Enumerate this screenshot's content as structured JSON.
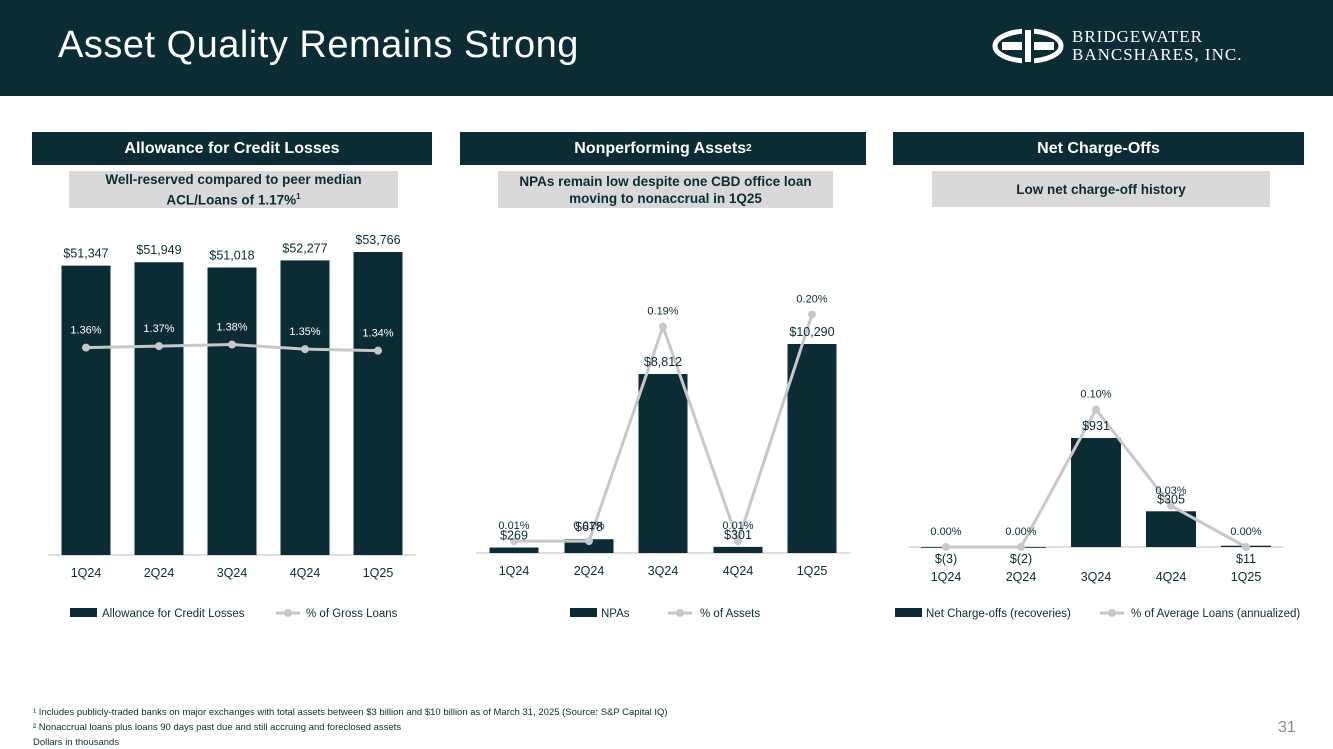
{
  "slide": {
    "title": "Asset Quality Remains Strong",
    "logo_line1": "Bridgewater",
    "logo_line2": "Bancshares, Inc.",
    "page_number": "31",
    "footnote_1": "¹ Includes publicly-traded banks on major exchanges with total assets between $3 billion and $10 billion as of March 31, 2025 (Source: S&P Capital IQ)",
    "footnote_2": "² Nonaccrual loans plus loans 90 days past due and still accruing and foreclosed assets",
    "footnote_3": "Dollars in thousands"
  },
  "colors": {
    "navy": "#0b2b35",
    "line": "#c8c8c8",
    "grey_box": "#d9d9d9"
  },
  "panels": [
    {
      "header": "Allowance for Credit Losses",
      "header_sup": "",
      "subtitle_line1": "Well-reserved compared to peer median",
      "subtitle_line2": "ACL/Loans of 1.17%",
      "subtitle_sup": "1"
    },
    {
      "header": "Nonperforming Assets",
      "header_sup": "2",
      "subtitle_line1": "NPAs remain low despite one CBD office loan",
      "subtitle_line2": "moving to nonaccrual in 1Q25",
      "subtitle_sup": ""
    },
    {
      "header": "Net Charge-Offs",
      "header_sup": "",
      "subtitle_line1": "Low net charge-off history",
      "subtitle_line2": "",
      "subtitle_sup": ""
    }
  ],
  "chart_data": [
    {
      "type": "bar",
      "title": "Allowance for Credit Losses",
      "categories": [
        "1Q24",
        "2Q24",
        "3Q24",
        "4Q24",
        "1Q25"
      ],
      "series": [
        {
          "name": "Allowance for Credit Losses",
          "kind": "bar",
          "values": [
            51347,
            51949,
            51018,
            52277,
            53766
          ],
          "labels": [
            "$51,347",
            "$51,949",
            "$51,018",
            "$52,277",
            "$53,766"
          ]
        },
        {
          "name": "% of Gross Loans",
          "kind": "line",
          "values": [
            1.36,
            1.37,
            1.38,
            1.35,
            1.34
          ],
          "labels": [
            "1.36%",
            "1.37%",
            "1.38%",
            "1.35%",
            "1.34%"
          ]
        }
      ],
      "bar_ylim": [
        0,
        55000
      ],
      "line_ylim": [
        0,
        2.0
      ]
    },
    {
      "type": "bar",
      "title": "Nonperforming Assets",
      "categories": [
        "1Q24",
        "2Q24",
        "3Q24",
        "4Q24",
        "1Q25"
      ],
      "series": [
        {
          "name": "NPAs",
          "kind": "bar",
          "values": [
            269,
            678,
            8812,
            301,
            10290
          ],
          "labels": [
            "$269",
            "$678",
            "$8,812",
            "$301",
            "$10,290"
          ]
        },
        {
          "name": "% of Assets",
          "kind": "line",
          "values": [
            0.01,
            0.01,
            0.19,
            0.01,
            0.2
          ],
          "labels": [
            "0.01%",
            "0.01%",
            "0.19%",
            "0.01%",
            "0.20%"
          ]
        }
      ],
      "bar_ylim": [
        0,
        10800
      ],
      "line_ylim": [
        0,
        0.25
      ]
    },
    {
      "type": "bar",
      "title": "Net Charge-Offs",
      "categories": [
        "1Q24",
        "2Q24",
        "3Q24",
        "4Q24",
        "1Q25"
      ],
      "series": [
        {
          "name": "Net Charge-offs (recoveries)",
          "kind": "bar",
          "values": [
            -3,
            -2,
            931,
            305,
            11
          ],
          "labels": [
            "$(3)",
            "$(2)",
            "$931",
            "$305",
            "$11"
          ]
        },
        {
          "name": "% of Average Loans (annualized)",
          "kind": "line",
          "values": [
            0.0,
            0.0,
            0.1,
            0.03,
            0.0
          ],
          "labels": [
            "0.00%",
            "0.00%",
            "0.10%",
            "0.03%",
            "0.00%"
          ]
        }
      ],
      "bar_ylim": [
        0,
        1000
      ],
      "line_ylim": [
        0,
        0.16
      ]
    }
  ]
}
